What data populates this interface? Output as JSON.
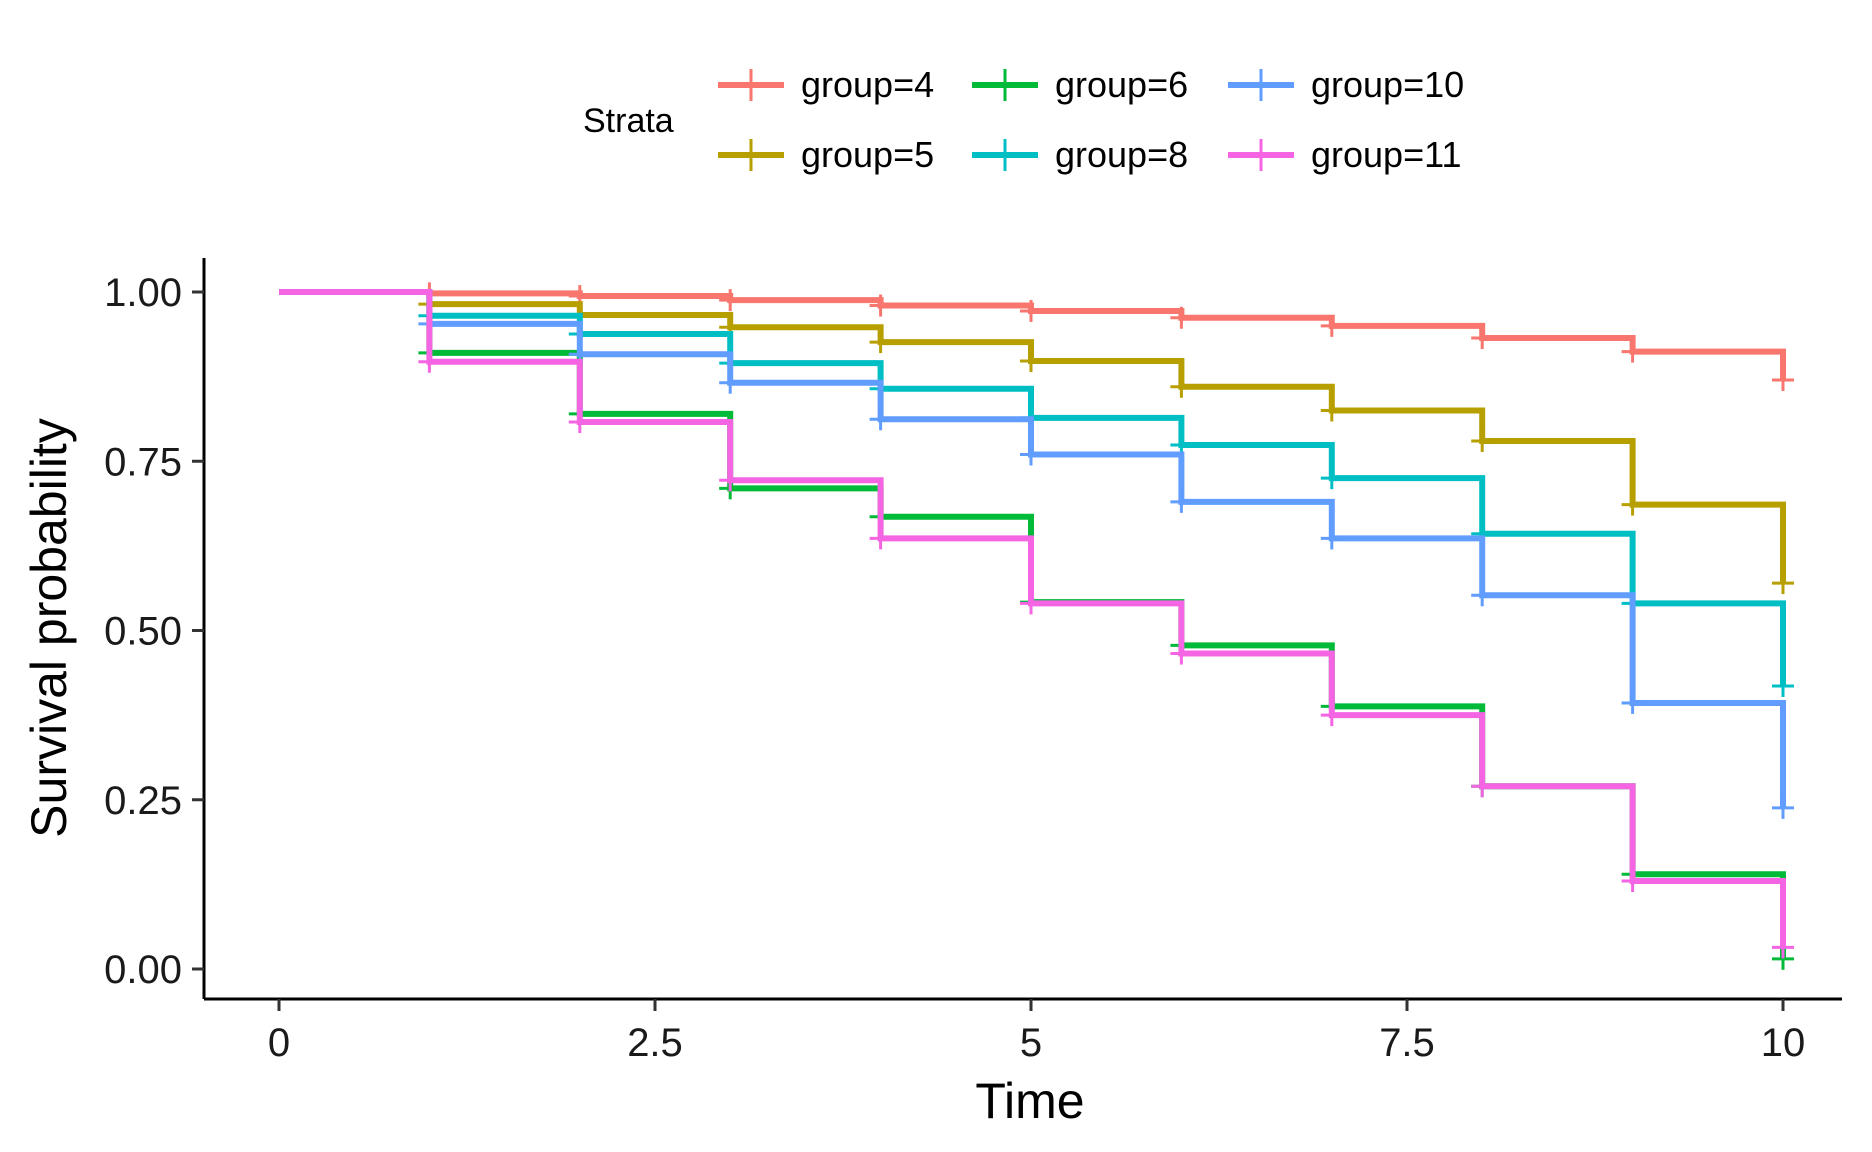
{
  "chart_data": {
    "type": "line",
    "subtype": "kaplan-meier step",
    "xlabel": "Time",
    "ylabel": "Survival probability",
    "xlim": [
      0,
      10
    ],
    "ylim": [
      0,
      1
    ],
    "x_ticks": [
      0,
      2.5,
      5,
      7.5,
      10
    ],
    "x_tick_labels": [
      "0",
      "2.5",
      "5",
      "7.5",
      "10"
    ],
    "y_ticks": [
      0,
      0.25,
      0.5,
      0.75,
      1
    ],
    "y_tick_labels": [
      "0.00",
      "0.25",
      "0.50",
      "0.75",
      "1.00"
    ],
    "grid": false,
    "legend": {
      "title": "Strata",
      "position": "top",
      "order": [
        "group=4",
        "group=5",
        "group=6",
        "group=8",
        "group=10",
        "group=11"
      ]
    },
    "series": [
      {
        "name": "group=4",
        "color": "#F8766D",
        "x": [
          0,
          1,
          2,
          3,
          4,
          5,
          6,
          7,
          8,
          9,
          10
        ],
        "y": [
          1.0,
          0.998,
          0.994,
          0.988,
          0.98,
          0.972,
          0.962,
          0.95,
          0.932,
          0.912,
          0.87
        ]
      },
      {
        "name": "group=5",
        "color": "#B79F00",
        "x": [
          0,
          1,
          2,
          3,
          4,
          5,
          6,
          7,
          8,
          9,
          10
        ],
        "y": [
          1.0,
          0.982,
          0.966,
          0.948,
          0.926,
          0.898,
          0.86,
          0.825,
          0.78,
          0.686,
          0.57
        ]
      },
      {
        "name": "group=6",
        "color": "#00BA38",
        "x": [
          0,
          1,
          2,
          3,
          4,
          5,
          6,
          7,
          8,
          9,
          10
        ],
        "y": [
          1.0,
          0.91,
          0.82,
          0.71,
          0.668,
          0.542,
          0.478,
          0.388,
          0.27,
          0.14,
          0.015
        ]
      },
      {
        "name": "group=8",
        "color": "#00BFC4",
        "x": [
          0,
          1,
          2,
          3,
          4,
          5,
          6,
          7,
          8,
          9,
          10
        ],
        "y": [
          1.0,
          0.965,
          0.938,
          0.895,
          0.857,
          0.814,
          0.774,
          0.725,
          0.643,
          0.54,
          0.418
        ]
      },
      {
        "name": "group=10",
        "color": "#619CFF",
        "x": [
          0,
          1,
          2,
          3,
          4,
          5,
          6,
          7,
          8,
          9,
          10
        ],
        "y": [
          1.0,
          0.953,
          0.908,
          0.866,
          0.812,
          0.76,
          0.69,
          0.636,
          0.552,
          0.393,
          0.238
        ]
      },
      {
        "name": "group=11",
        "color": "#F564E3",
        "x": [
          0,
          1,
          2,
          3,
          4,
          5,
          6,
          7,
          8,
          9,
          10
        ],
        "y": [
          1.0,
          0.897,
          0.808,
          0.722,
          0.636,
          0.54,
          0.466,
          0.375,
          0.27,
          0.13,
          0.032
        ]
      }
    ]
  }
}
